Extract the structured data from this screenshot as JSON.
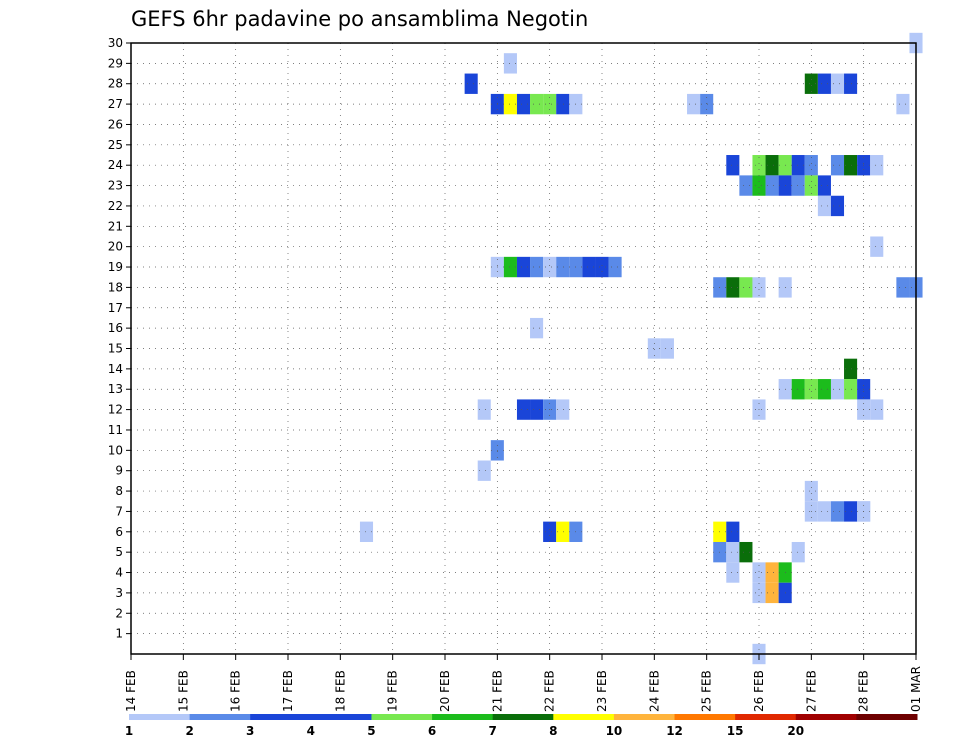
{
  "chart_data": {
    "type": "heatmap",
    "title": "GEFS 6hr padavine po ansamblima Negotin",
    "xlabel": "",
    "ylabel": "",
    "x_tick_labels": [
      "14 FEB",
      "15 FEB",
      "16 FEB",
      "17 FEB",
      "18 FEB",
      "19 FEB",
      "20 FEB",
      "21 FEB",
      "22 FEB",
      "23 FEB",
      "24 FEB",
      "25 FEB",
      "26 FEB",
      "27 FEB",
      "28 FEB",
      "01 MAR"
    ],
    "y_tick_labels": [
      "1",
      "2",
      "3",
      "4",
      "5",
      "6",
      "7",
      "8",
      "9",
      "10",
      "11",
      "12",
      "13",
      "14",
      "15",
      "16",
      "17",
      "18",
      "19",
      "20",
      "21",
      "22",
      "23",
      "24",
      "25",
      "26",
      "27",
      "28",
      "29",
      "30"
    ],
    "x_range_steps_6h": [
      0,
      60
    ],
    "y_range_members": [
      0,
      30
    ],
    "grid": true,
    "legend_placement": "bottom",
    "legend": {
      "labels": [
        "1",
        "2",
        "3",
        "4",
        "5",
        "6",
        "7",
        "8",
        "10",
        "12",
        "15",
        "20"
      ],
      "colors": [
        "#b4c8f8",
        "#5a8ae8",
        "#1a45d8",
        "#1a45d8",
        "#78e850",
        "#1cbc1c",
        "#0a6e0a",
        "#ffff00",
        "#ffb43c",
        "#ff7800",
        "#e02800",
        "#a00000",
        "#6e0000"
      ]
    },
    "level_colors": {
      "1": "#b4c8f8",
      "2": "#5a8ae8",
      "3": "#1a45d8",
      "5": "#78e850",
      "6": "#1cbc1c",
      "7": "#0a6e0a",
      "8": "#ffff00",
      "10": "#ffb43c"
    },
    "note_x": "x = 6-hour step index from 14 FEB 00 UTC",
    "cells": [
      [
        60,
        30,
        1
      ],
      [
        29,
        29,
        1
      ],
      [
        26,
        28,
        3
      ],
      [
        52,
        28,
        7
      ],
      [
        53,
        28,
        3
      ],
      [
        54,
        28,
        1
      ],
      [
        55,
        28,
        3
      ],
      [
        28,
        27,
        3
      ],
      [
        29,
        27,
        8
      ],
      [
        30,
        27,
        3
      ],
      [
        31,
        27,
        5
      ],
      [
        32,
        27,
        5
      ],
      [
        33,
        27,
        3
      ],
      [
        34,
        27,
        1
      ],
      [
        43,
        27,
        1
      ],
      [
        44,
        27,
        2
      ],
      [
        59,
        27,
        1
      ],
      [
        46,
        24,
        3
      ],
      [
        48,
        24,
        5
      ],
      [
        49,
        24,
        7
      ],
      [
        50,
        24,
        5
      ],
      [
        51,
        24,
        3
      ],
      [
        52,
        24,
        2
      ],
      [
        54,
        24,
        2
      ],
      [
        55,
        24,
        7
      ],
      [
        56,
        24,
        3
      ],
      [
        57,
        24,
        1
      ],
      [
        47,
        23,
        2
      ],
      [
        48,
        23,
        6
      ],
      [
        49,
        23,
        2
      ],
      [
        50,
        23,
        3
      ],
      [
        51,
        23,
        2
      ],
      [
        52,
        23,
        5
      ],
      [
        53,
        23,
        3
      ],
      [
        53,
        22,
        1
      ],
      [
        54,
        22,
        3
      ],
      [
        57,
        20,
        1
      ],
      [
        28,
        19,
        1
      ],
      [
        29,
        19,
        6
      ],
      [
        30,
        19,
        3
      ],
      [
        31,
        19,
        2
      ],
      [
        32,
        19,
        1
      ],
      [
        33,
        19,
        2
      ],
      [
        34,
        19,
        2
      ],
      [
        35,
        19,
        3
      ],
      [
        36,
        19,
        3
      ],
      [
        37,
        19,
        2
      ],
      [
        45,
        18,
        2
      ],
      [
        46,
        18,
        7
      ],
      [
        47,
        18,
        5
      ],
      [
        48,
        18,
        1
      ],
      [
        50,
        18,
        1
      ],
      [
        59,
        18,
        2
      ],
      [
        60,
        18,
        2
      ],
      [
        31,
        16,
        1
      ],
      [
        40,
        15,
        1
      ],
      [
        41,
        15,
        1
      ],
      [
        55,
        14,
        7
      ],
      [
        50,
        13,
        1
      ],
      [
        51,
        13,
        6
      ],
      [
        52,
        13,
        5
      ],
      [
        53,
        13,
        6
      ],
      [
        54,
        13,
        1
      ],
      [
        55,
        13,
        5
      ],
      [
        56,
        13,
        3
      ],
      [
        27,
        12,
        1
      ],
      [
        30,
        12,
        3
      ],
      [
        31,
        12,
        3
      ],
      [
        32,
        12,
        2
      ],
      [
        33,
        12,
        1
      ],
      [
        48,
        12,
        1
      ],
      [
        56,
        12,
        1
      ],
      [
        57,
        12,
        1
      ],
      [
        28,
        10,
        2
      ],
      [
        27,
        9,
        1
      ],
      [
        52,
        8,
        1
      ],
      [
        56,
        7,
        1
      ],
      [
        52,
        7,
        1
      ],
      [
        53,
        7,
        1
      ],
      [
        54,
        7,
        2
      ],
      [
        55,
        7,
        3
      ],
      [
        56,
        7,
        1
      ],
      [
        18,
        6,
        1
      ],
      [
        32,
        6,
        3
      ],
      [
        33,
        6,
        8
      ],
      [
        34,
        6,
        2
      ],
      [
        45,
        6,
        8
      ],
      [
        46,
        6,
        3
      ],
      [
        45,
        5,
        2
      ],
      [
        46,
        5,
        1
      ],
      [
        47,
        5,
        7
      ],
      [
        51,
        5,
        1
      ],
      [
        46,
        4,
        1
      ],
      [
        48,
        4,
        1
      ],
      [
        49,
        4,
        10
      ],
      [
        50,
        4,
        6
      ],
      [
        48,
        3,
        1
      ],
      [
        49,
        3,
        10
      ],
      [
        50,
        3,
        3
      ],
      [
        48,
        0,
        1
      ]
    ]
  }
}
